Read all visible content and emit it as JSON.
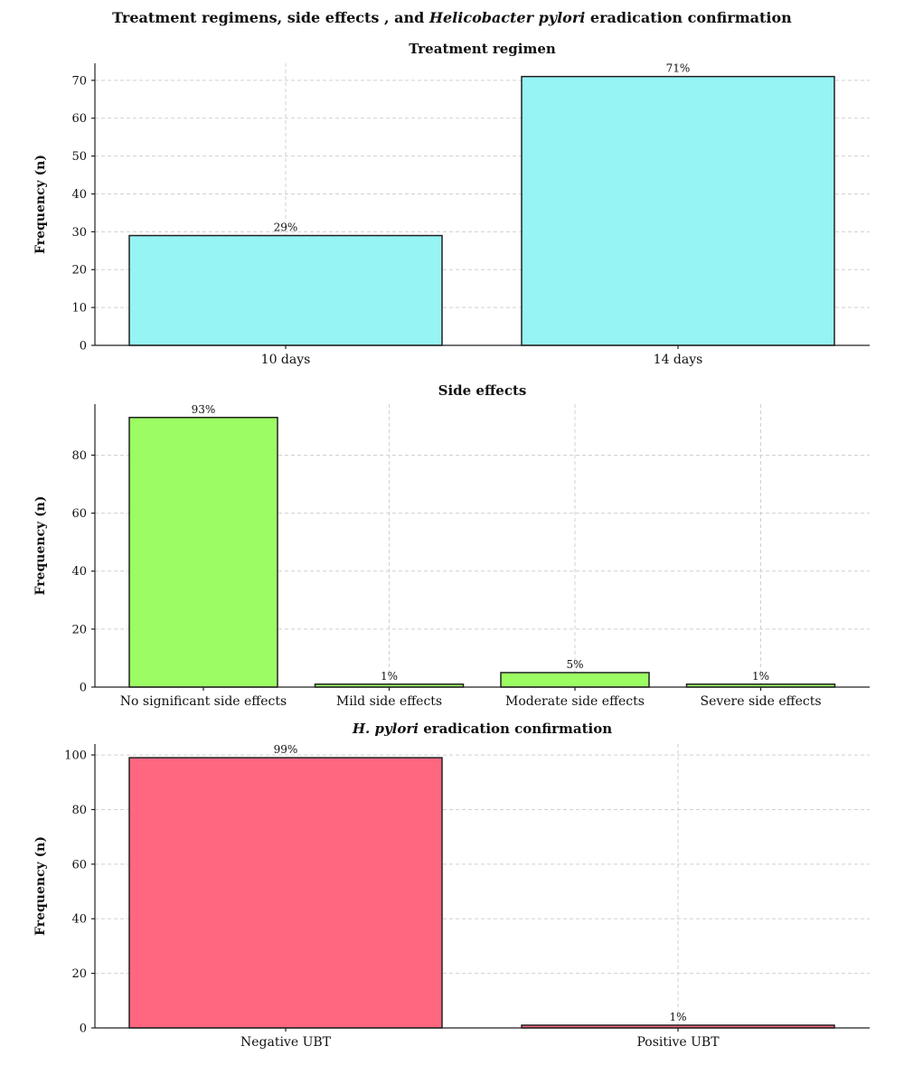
{
  "figure": {
    "title_part1": "Treatment regimens, side effects , and ",
    "title_italic": "Helicobacter pylori",
    "title_part2": " eradication confirmation"
  },
  "chart_data": [
    {
      "type": "bar",
      "title": "Treatment regimen",
      "title_italic": "",
      "title_rest": "",
      "ylabel": "Frequency (n)",
      "categories": [
        "10 days",
        "14 days"
      ],
      "values": [
        29,
        71
      ],
      "data_labels": [
        "29%",
        "71%"
      ],
      "ylim": [
        0,
        74.5
      ],
      "yticks": [
        0,
        10,
        20,
        30,
        40,
        50,
        60,
        70
      ],
      "color": "#96f4f4",
      "grid": true
    },
    {
      "type": "bar",
      "title": "Side effects",
      "title_italic": "",
      "title_rest": "",
      "ylabel": "Frequency (n)",
      "categories": [
        "No significant side effects",
        "Mild side effects",
        "Moderate side effects",
        "Severe side effects"
      ],
      "values": [
        93,
        1,
        5,
        1
      ],
      "data_labels": [
        "93%",
        "1%",
        "5%",
        "1%"
      ],
      "ylim": [
        0,
        97.6
      ],
      "yticks": [
        0,
        20,
        40,
        60,
        80
      ],
      "color": "#9cfc64",
      "grid": true
    },
    {
      "type": "bar",
      "title": "",
      "title_italic": "H. pylori",
      "title_rest": " eradication confirmation",
      "ylabel": "Frequency (n)",
      "categories": [
        "Negative UBT",
        "Positive UBT"
      ],
      "values": [
        99,
        1
      ],
      "data_labels": [
        "99%",
        "1%"
      ],
      "ylim": [
        0,
        104
      ],
      "yticks": [
        0,
        20,
        40,
        60,
        80,
        100
      ],
      "color": "#ff6680",
      "grid": true
    }
  ]
}
